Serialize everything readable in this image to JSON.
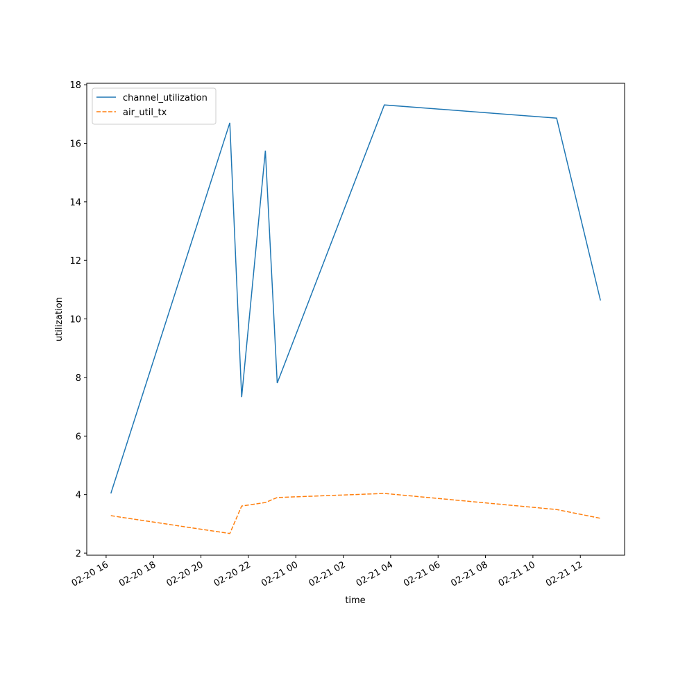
{
  "chart_data": {
    "type": "line",
    "x_label": "time",
    "y_label": "utilization",
    "x": [
      "02-20 16:12",
      "02-20 21:13",
      "02-20 21:43",
      "02-20 22:43",
      "02-20 23:13",
      "02-21 03:44",
      "02-21 11:00",
      "02-21 12:51"
    ],
    "series": [
      {
        "name": "channel_utilization",
        "color": "#1f77b4",
        "dash": false,
        "values": [
          4.04,
          16.7,
          7.33,
          15.75,
          7.81,
          17.31,
          16.86,
          10.63
        ]
      },
      {
        "name": "air_util_tx",
        "color": "#ff7f0e",
        "dash": true,
        "values": [
          3.28,
          2.67,
          3.61,
          3.73,
          3.9,
          4.04,
          3.49,
          3.19
        ]
      }
    ],
    "xlim": [
      "02-20 15:11",
      "02-21 13:52"
    ],
    "xticks": [
      "02-20 16",
      "02-20 18",
      "02-20 20",
      "02-20 22",
      "02-21 00",
      "02-21 02",
      "02-21 04",
      "02-21 06",
      "02-21 08",
      "02-21 10",
      "02-21 12"
    ],
    "ylim": [
      1.93,
      18.05
    ],
    "yticks": [
      2,
      4,
      6,
      8,
      10,
      12,
      14,
      16,
      18
    ],
    "legend": "upper left"
  }
}
